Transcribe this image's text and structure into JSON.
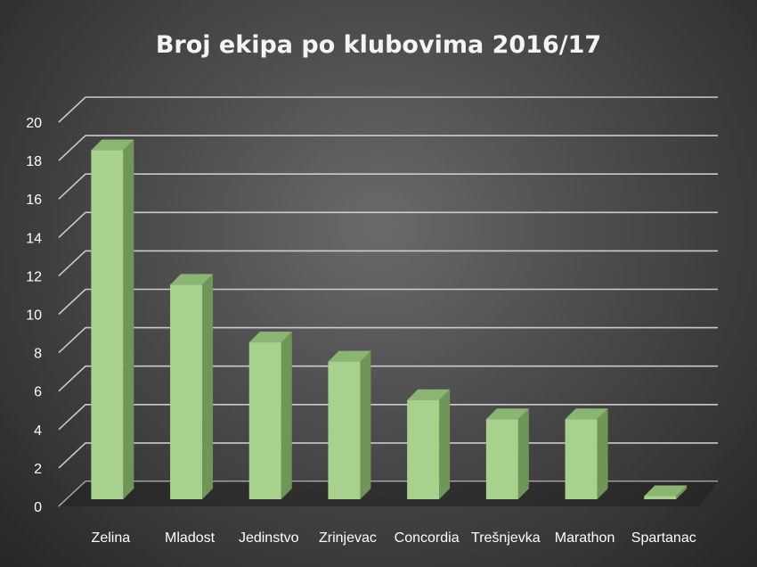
{
  "chart_data": {
    "type": "bar",
    "title": "Broj ekipa po klubovima 2016/17",
    "xlabel": "",
    "ylabel": "",
    "categories": [
      "Zelina",
      "Mladost",
      "Jedinstvo",
      "Zrinjevac",
      "Concordia",
      "Trešnjevka",
      "Marathon",
      "Spartanac"
    ],
    "values": [
      19,
      12,
      9,
      8,
      6,
      5,
      5,
      1
    ],
    "ylim": [
      0,
      20
    ],
    "yticks": [
      "0",
      "2",
      "4",
      "6",
      "8",
      "10",
      "12",
      "14",
      "16",
      "18",
      "20"
    ],
    "grid": true,
    "legend": "none",
    "style": "3d-column",
    "colors": {
      "bar_front": "#a9d18e",
      "bar_side": "#6f9656",
      "bar_top": "#8bb573",
      "grid": "#d9d9d9",
      "text": "#ffffff"
    }
  }
}
